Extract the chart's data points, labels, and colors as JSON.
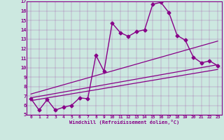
{
  "xlabel": "Windchill (Refroidissement éolien,°C)",
  "background_color": "#cce8e0",
  "line_color": "#880088",
  "xlim": [
    -0.5,
    23.5
  ],
  "ylim": [
    5,
    17
  ],
  "xticks": [
    0,
    1,
    2,
    3,
    4,
    5,
    6,
    7,
    8,
    9,
    10,
    11,
    12,
    13,
    14,
    15,
    16,
    17,
    18,
    19,
    20,
    21,
    22,
    23
  ],
  "yticks": [
    5,
    6,
    7,
    8,
    9,
    10,
    11,
    12,
    13,
    14,
    15,
    16,
    17
  ],
  "main_x": [
    0,
    1,
    2,
    3,
    4,
    5,
    6,
    7,
    8,
    9,
    10,
    11,
    12,
    13,
    14,
    15,
    16,
    17,
    18,
    19,
    20,
    21,
    22,
    23
  ],
  "main_y": [
    6.7,
    5.5,
    6.6,
    5.5,
    5.8,
    6.0,
    6.8,
    6.7,
    11.3,
    9.6,
    14.7,
    13.7,
    13.3,
    13.8,
    14.0,
    16.7,
    16.9,
    15.8,
    13.4,
    12.9,
    11.1,
    10.5,
    10.7,
    10.2
  ],
  "diag_lines": [
    {
      "x": [
        0,
        23
      ],
      "y": [
        6.5,
        9.8
      ]
    },
    {
      "x": [
        0,
        23
      ],
      "y": [
        6.8,
        10.3
      ]
    },
    {
      "x": [
        0,
        23
      ],
      "y": [
        7.2,
        12.8
      ]
    }
  ]
}
